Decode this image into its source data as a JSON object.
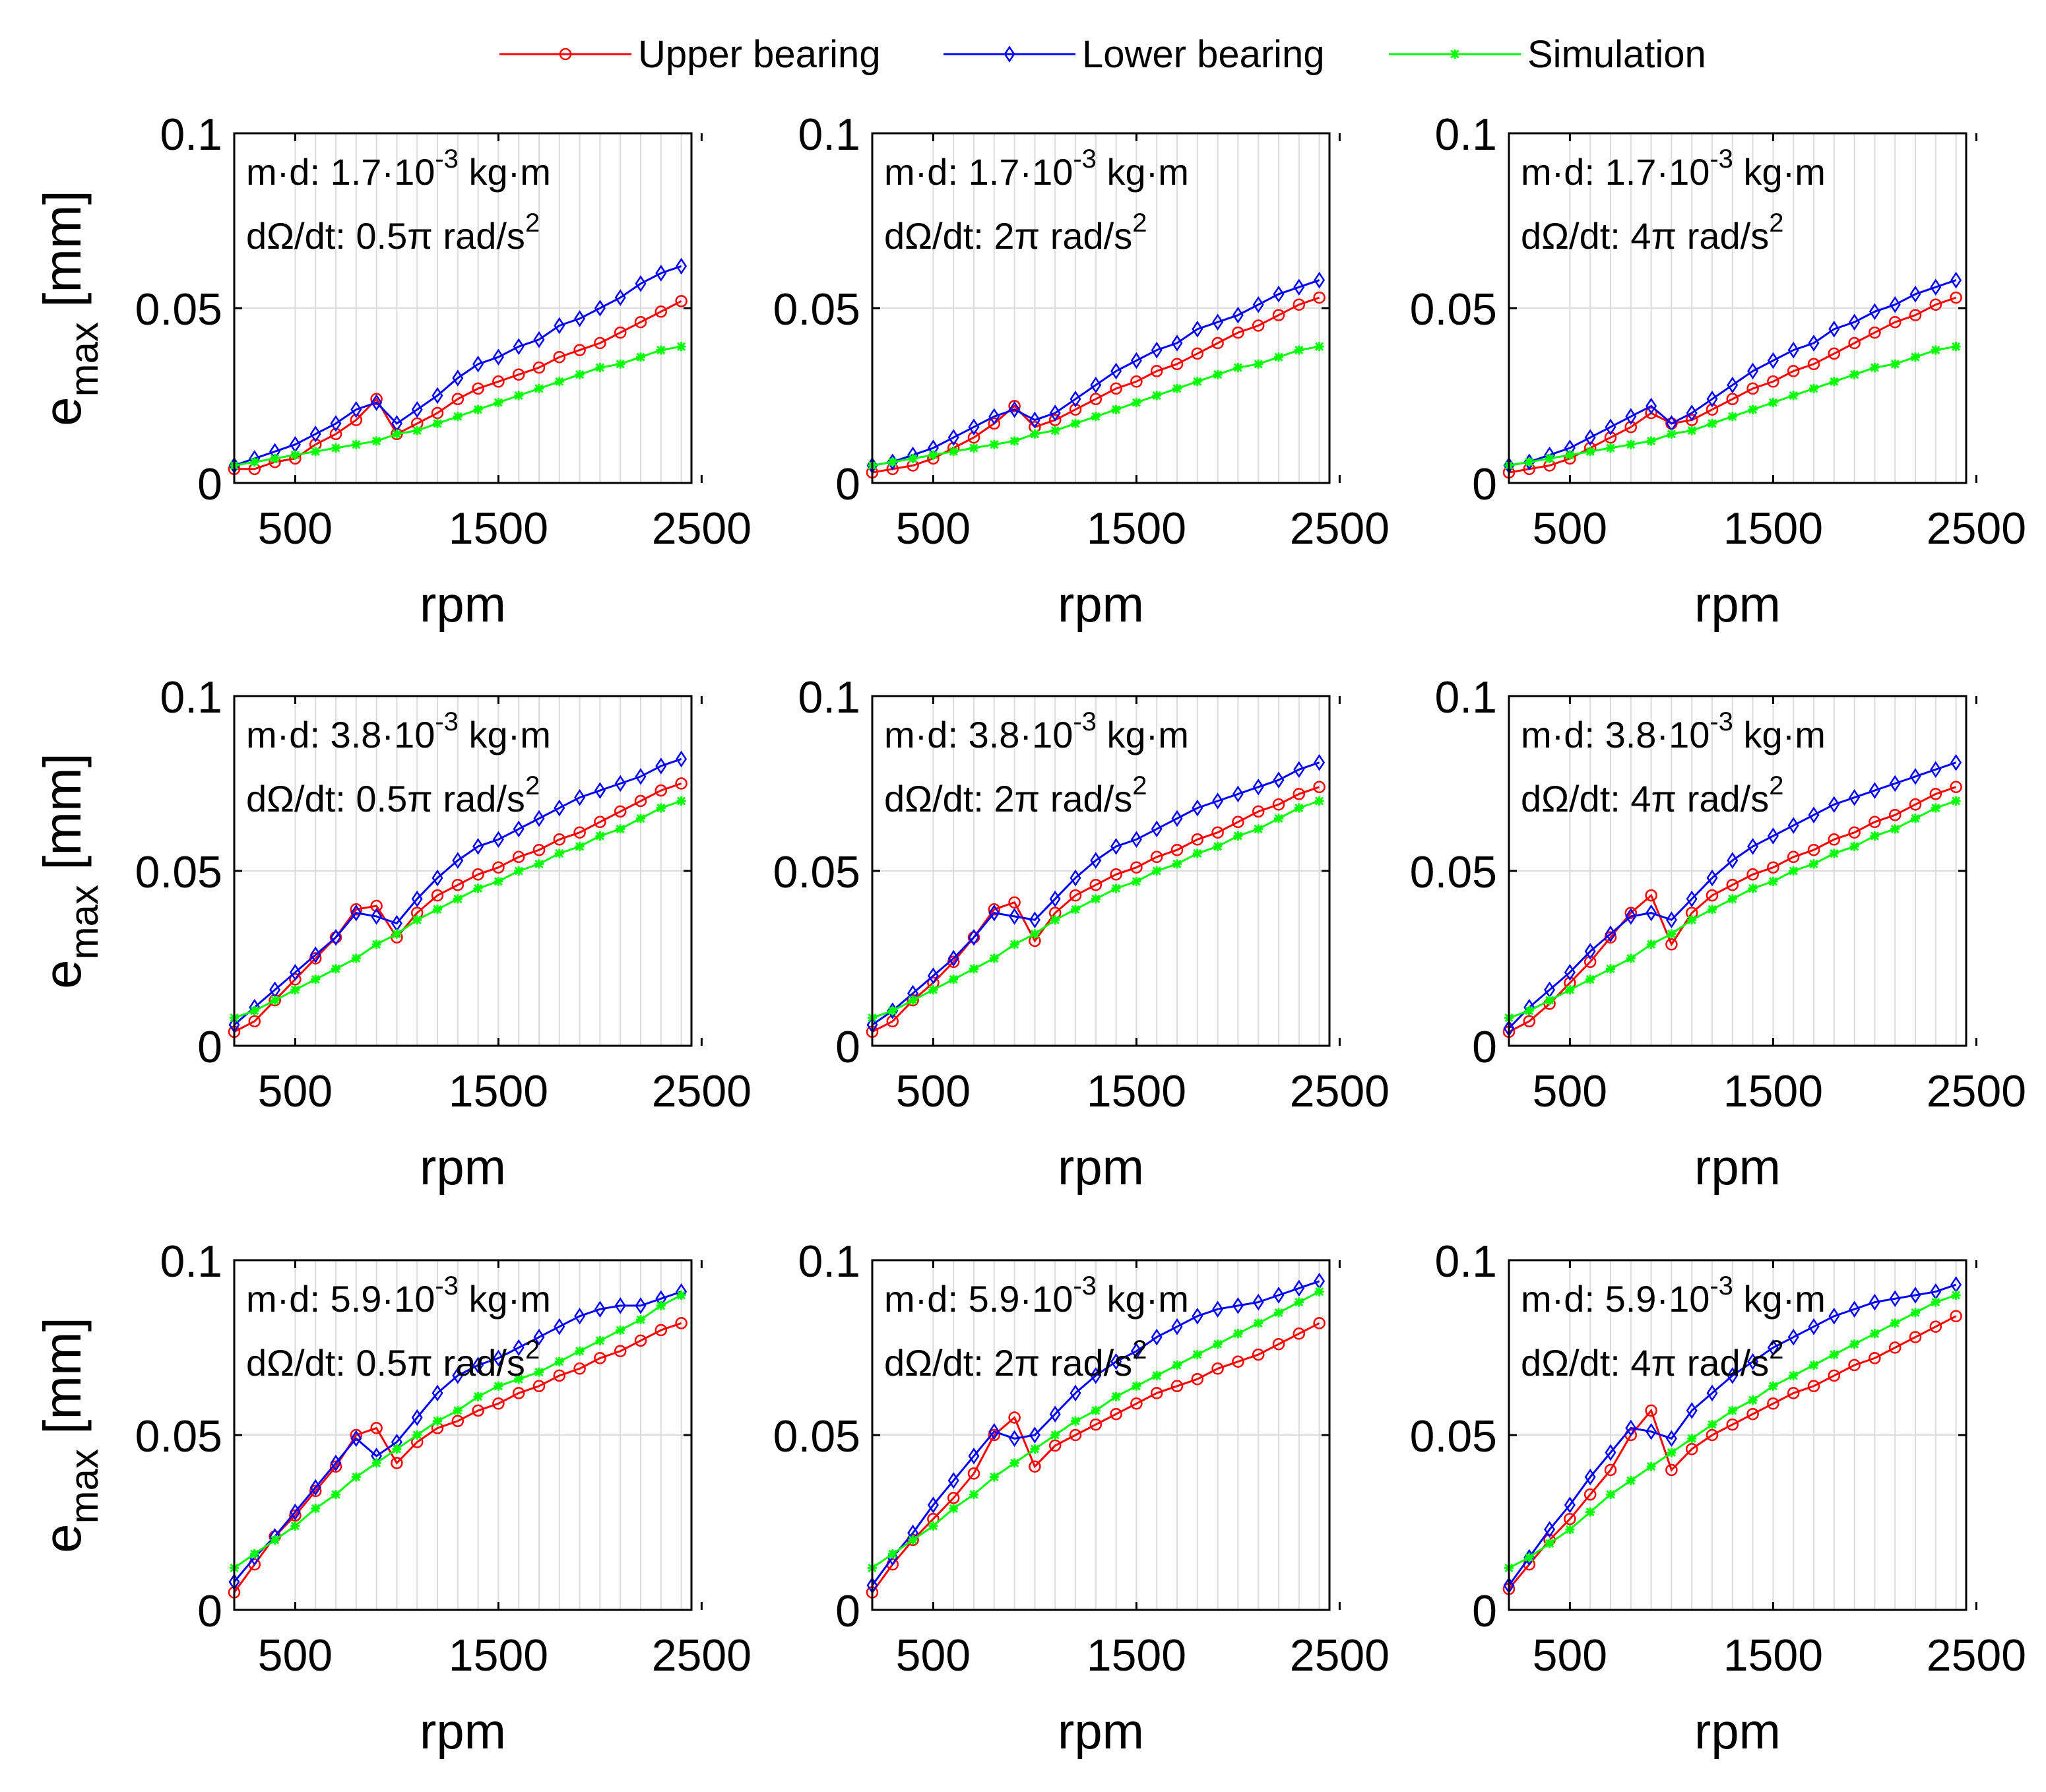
{
  "legend": [
    {
      "label": "Upper bearing",
      "color": "#ff0000",
      "marker": "circle"
    },
    {
      "label": "Lower bearing",
      "color": "#0000ff",
      "marker": "diamond"
    },
    {
      "label": "Simulation",
      "color": "#00ff00",
      "marker": "star"
    }
  ],
  "axis_labels": {
    "x": "rpm",
    "y_main": "e",
    "y_sub": "max",
    "y_unit": "[mm]"
  },
  "ticks": {
    "x": [
      {
        "value": 500,
        "label": "500"
      },
      {
        "value": 1500,
        "label": "1500"
      },
      {
        "value": 2500,
        "label": "2500"
      }
    ],
    "y": [
      {
        "value": 0,
        "label": "0"
      },
      {
        "value": 0.05,
        "label": "0.05"
      },
      {
        "value": 0.1,
        "label": "0.1"
      }
    ]
  },
  "annotation_text": {
    "md_prefix": "m·d: ",
    "md_suffix": "·10",
    "md_exp": "-3",
    "md_unit": " kg·m",
    "acc_prefix": "dΩ/dt: ",
    "acc_unit": " rad/s",
    "acc_exp": "2"
  },
  "chart_data": {
    "type": "line",
    "x": [
      200,
      300,
      400,
      500,
      600,
      700,
      800,
      900,
      1000,
      1100,
      1200,
      1300,
      1400,
      1500,
      1600,
      1700,
      1800,
      1900,
      2000,
      2100,
      2200,
      2300,
      2400
    ],
    "xlim": [
      200,
      2450
    ],
    "ylim": [
      0,
      0.1
    ],
    "xlabel": "rpm",
    "ylabel": "e_max [mm]",
    "grid": true,
    "legend_position": "top",
    "panels": [
      {
        "md": "1.7",
        "acc": "0.5π",
        "series": [
          {
            "name": "Upper bearing",
            "values": [
              0.004,
              0.004,
              0.006,
              0.007,
              0.011,
              0.014,
              0.018,
              0.024,
              0.014,
              0.017,
              0.02,
              0.024,
              0.027,
              0.029,
              0.031,
              0.033,
              0.036,
              0.038,
              0.04,
              0.043,
              0.046,
              0.049,
              0.052
            ]
          },
          {
            "name": "Lower bearing",
            "values": [
              0.005,
              0.007,
              0.009,
              0.011,
              0.014,
              0.017,
              0.021,
              0.023,
              0.017,
              0.021,
              0.025,
              0.03,
              0.034,
              0.036,
              0.039,
              0.041,
              0.045,
              0.047,
              0.05,
              0.053,
              0.057,
              0.06,
              0.062
            ]
          },
          {
            "name": "Simulation",
            "values": [
              0.005,
              0.006,
              0.007,
              0.008,
              0.009,
              0.01,
              0.011,
              0.012,
              0.014,
              0.015,
              0.017,
              0.019,
              0.021,
              0.023,
              0.025,
              0.027,
              0.029,
              0.031,
              0.033,
              0.034,
              0.036,
              0.038,
              0.039
            ]
          }
        ]
      },
      {
        "md": "1.7",
        "acc": "2π",
        "series": [
          {
            "name": "Upper bearing",
            "values": [
              0.003,
              0.004,
              0.005,
              0.007,
              0.01,
              0.013,
              0.017,
              0.022,
              0.016,
              0.018,
              0.021,
              0.024,
              0.027,
              0.029,
              0.032,
              0.034,
              0.037,
              0.04,
              0.043,
              0.045,
              0.048,
              0.051,
              0.053
            ]
          },
          {
            "name": "Lower bearing",
            "values": [
              0.005,
              0.006,
              0.008,
              0.01,
              0.013,
              0.016,
              0.019,
              0.021,
              0.018,
              0.02,
              0.024,
              0.028,
              0.032,
              0.035,
              0.038,
              0.04,
              0.044,
              0.046,
              0.048,
              0.051,
              0.054,
              0.056,
              0.058
            ]
          },
          {
            "name": "Simulation",
            "values": [
              0.005,
              0.006,
              0.007,
              0.008,
              0.009,
              0.01,
              0.011,
              0.012,
              0.014,
              0.015,
              0.017,
              0.019,
              0.021,
              0.023,
              0.025,
              0.027,
              0.029,
              0.031,
              0.033,
              0.034,
              0.036,
              0.038,
              0.039
            ]
          }
        ]
      },
      {
        "md": "1.7",
        "acc": "4π",
        "series": [
          {
            "name": "Upper bearing",
            "values": [
              0.003,
              0.004,
              0.005,
              0.007,
              0.01,
              0.013,
              0.016,
              0.02,
              0.017,
              0.018,
              0.021,
              0.024,
              0.027,
              0.029,
              0.032,
              0.034,
              0.037,
              0.04,
              0.043,
              0.046,
              0.048,
              0.051,
              0.053
            ]
          },
          {
            "name": "Lower bearing",
            "values": [
              0.005,
              0.006,
              0.008,
              0.01,
              0.013,
              0.016,
              0.019,
              0.022,
              0.017,
              0.02,
              0.024,
              0.028,
              0.032,
              0.035,
              0.038,
              0.04,
              0.044,
              0.046,
              0.049,
              0.051,
              0.054,
              0.056,
              0.058
            ]
          },
          {
            "name": "Simulation",
            "values": [
              0.005,
              0.006,
              0.007,
              0.008,
              0.009,
              0.01,
              0.011,
              0.012,
              0.014,
              0.015,
              0.017,
              0.019,
              0.021,
              0.023,
              0.025,
              0.027,
              0.029,
              0.031,
              0.033,
              0.034,
              0.036,
              0.038,
              0.039
            ]
          }
        ]
      },
      {
        "md": "3.8",
        "acc": "0.5π",
        "series": [
          {
            "name": "Upper bearing",
            "values": [
              0.004,
              0.007,
              0.013,
              0.019,
              0.025,
              0.031,
              0.039,
              0.04,
              0.031,
              0.038,
              0.043,
              0.046,
              0.049,
              0.051,
              0.054,
              0.056,
              0.059,
              0.061,
              0.064,
              0.067,
              0.07,
              0.073,
              0.075
            ]
          },
          {
            "name": "Lower bearing",
            "values": [
              0.006,
              0.011,
              0.016,
              0.021,
              0.026,
              0.031,
              0.038,
              0.037,
              0.035,
              0.042,
              0.048,
              0.053,
              0.057,
              0.059,
              0.062,
              0.065,
              0.068,
              0.071,
              0.073,
              0.075,
              0.077,
              0.08,
              0.082
            ]
          },
          {
            "name": "Simulation",
            "values": [
              0.008,
              0.01,
              0.013,
              0.016,
              0.019,
              0.022,
              0.025,
              0.029,
              0.032,
              0.036,
              0.039,
              0.042,
              0.045,
              0.047,
              0.05,
              0.052,
              0.055,
              0.057,
              0.06,
              0.062,
              0.065,
              0.068,
              0.07
            ]
          }
        ]
      },
      {
        "md": "3.8",
        "acc": "2π",
        "series": [
          {
            "name": "Upper bearing",
            "values": [
              0.004,
              0.007,
              0.013,
              0.018,
              0.024,
              0.031,
              0.039,
              0.041,
              0.03,
              0.038,
              0.043,
              0.046,
              0.049,
              0.051,
              0.054,
              0.056,
              0.059,
              0.061,
              0.064,
              0.067,
              0.069,
              0.072,
              0.074
            ]
          },
          {
            "name": "Lower bearing",
            "values": [
              0.006,
              0.01,
              0.015,
              0.02,
              0.025,
              0.031,
              0.038,
              0.037,
              0.036,
              0.042,
              0.048,
              0.053,
              0.057,
              0.059,
              0.062,
              0.065,
              0.068,
              0.07,
              0.072,
              0.074,
              0.076,
              0.079,
              0.081
            ]
          },
          {
            "name": "Simulation",
            "values": [
              0.008,
              0.01,
              0.013,
              0.016,
              0.019,
              0.022,
              0.025,
              0.029,
              0.032,
              0.036,
              0.039,
              0.042,
              0.045,
              0.047,
              0.05,
              0.052,
              0.055,
              0.057,
              0.06,
              0.062,
              0.065,
              0.068,
              0.07
            ]
          }
        ]
      },
      {
        "md": "3.8",
        "acc": "4π",
        "series": [
          {
            "name": "Upper bearing",
            "values": [
              0.004,
              0.007,
              0.012,
              0.018,
              0.024,
              0.031,
              0.038,
              0.043,
              0.029,
              0.038,
              0.043,
              0.046,
              0.049,
              0.051,
              0.054,
              0.056,
              0.059,
              0.061,
              0.064,
              0.066,
              0.069,
              0.072,
              0.074
            ]
          },
          {
            "name": "Lower bearing",
            "values": [
              0.005,
              0.011,
              0.016,
              0.021,
              0.027,
              0.032,
              0.037,
              0.038,
              0.036,
              0.042,
              0.048,
              0.053,
              0.057,
              0.06,
              0.063,
              0.066,
              0.069,
              0.071,
              0.073,
              0.075,
              0.077,
              0.079,
              0.081
            ]
          },
          {
            "name": "Simulation",
            "values": [
              0.008,
              0.01,
              0.013,
              0.016,
              0.019,
              0.022,
              0.025,
              0.029,
              0.032,
              0.036,
              0.039,
              0.042,
              0.045,
              0.047,
              0.05,
              0.052,
              0.055,
              0.057,
              0.06,
              0.062,
              0.065,
              0.068,
              0.07
            ]
          }
        ]
      },
      {
        "md": "5.9",
        "acc": "0.5π",
        "series": [
          {
            "name": "Upper bearing",
            "values": [
              0.005,
              0.013,
              0.021,
              0.027,
              0.034,
              0.041,
              0.05,
              0.052,
              0.042,
              0.048,
              0.052,
              0.054,
              0.057,
              0.059,
              0.062,
              0.064,
              0.067,
              0.069,
              0.072,
              0.074,
              0.077,
              0.08,
              0.082
            ]
          },
          {
            "name": "Lower bearing",
            "values": [
              0.008,
              0.015,
              0.021,
              0.028,
              0.035,
              0.042,
              0.049,
              0.044,
              0.048,
              0.055,
              0.062,
              0.067,
              0.07,
              0.072,
              0.075,
              0.078,
              0.081,
              0.084,
              0.086,
              0.087,
              0.087,
              0.089,
              0.091
            ]
          },
          {
            "name": "Simulation",
            "values": [
              0.012,
              0.016,
              0.02,
              0.024,
              0.029,
              0.033,
              0.038,
              0.042,
              0.046,
              0.05,
              0.054,
              0.057,
              0.061,
              0.064,
              0.066,
              0.068,
              0.071,
              0.074,
              0.077,
              0.08,
              0.083,
              0.087,
              0.09
            ]
          }
        ]
      },
      {
        "md": "5.9",
        "acc": "2π",
        "series": [
          {
            "name": "Upper bearing",
            "values": [
              0.005,
              0.013,
              0.02,
              0.026,
              0.032,
              0.039,
              0.05,
              0.055,
              0.041,
              0.047,
              0.05,
              0.053,
              0.056,
              0.059,
              0.062,
              0.064,
              0.066,
              0.069,
              0.071,
              0.073,
              0.076,
              0.079,
              0.082
            ]
          },
          {
            "name": "Lower bearing",
            "values": [
              0.007,
              0.015,
              0.022,
              0.03,
              0.037,
              0.044,
              0.051,
              0.049,
              0.05,
              0.056,
              0.062,
              0.067,
              0.071,
              0.074,
              0.078,
              0.081,
              0.084,
              0.086,
              0.087,
              0.088,
              0.09,
              0.092,
              0.094
            ]
          },
          {
            "name": "Simulation",
            "values": [
              0.012,
              0.016,
              0.02,
              0.024,
              0.029,
              0.033,
              0.038,
              0.042,
              0.046,
              0.05,
              0.054,
              0.057,
              0.061,
              0.064,
              0.067,
              0.07,
              0.073,
              0.076,
              0.079,
              0.082,
              0.085,
              0.088,
              0.091
            ]
          }
        ]
      },
      {
        "md": "5.9",
        "acc": "4π",
        "series": [
          {
            "name": "Upper bearing",
            "values": [
              0.006,
              0.013,
              0.02,
              0.026,
              0.033,
              0.04,
              0.05,
              0.057,
              0.04,
              0.046,
              0.05,
              0.053,
              0.056,
              0.059,
              0.062,
              0.064,
              0.067,
              0.07,
              0.072,
              0.075,
              0.078,
              0.081,
              0.084
            ]
          },
          {
            "name": "Lower bearing",
            "values": [
              0.007,
              0.015,
              0.023,
              0.03,
              0.038,
              0.045,
              0.052,
              0.051,
              0.049,
              0.057,
              0.062,
              0.067,
              0.071,
              0.075,
              0.078,
              0.081,
              0.084,
              0.086,
              0.088,
              0.089,
              0.09,
              0.091,
              0.093
            ]
          },
          {
            "name": "Simulation",
            "values": [
              0.012,
              0.015,
              0.019,
              0.023,
              0.028,
              0.033,
              0.037,
              0.041,
              0.045,
              0.049,
              0.053,
              0.057,
              0.06,
              0.064,
              0.067,
              0.07,
              0.073,
              0.076,
              0.079,
              0.082,
              0.085,
              0.088,
              0.09
            ]
          }
        ]
      }
    ]
  }
}
